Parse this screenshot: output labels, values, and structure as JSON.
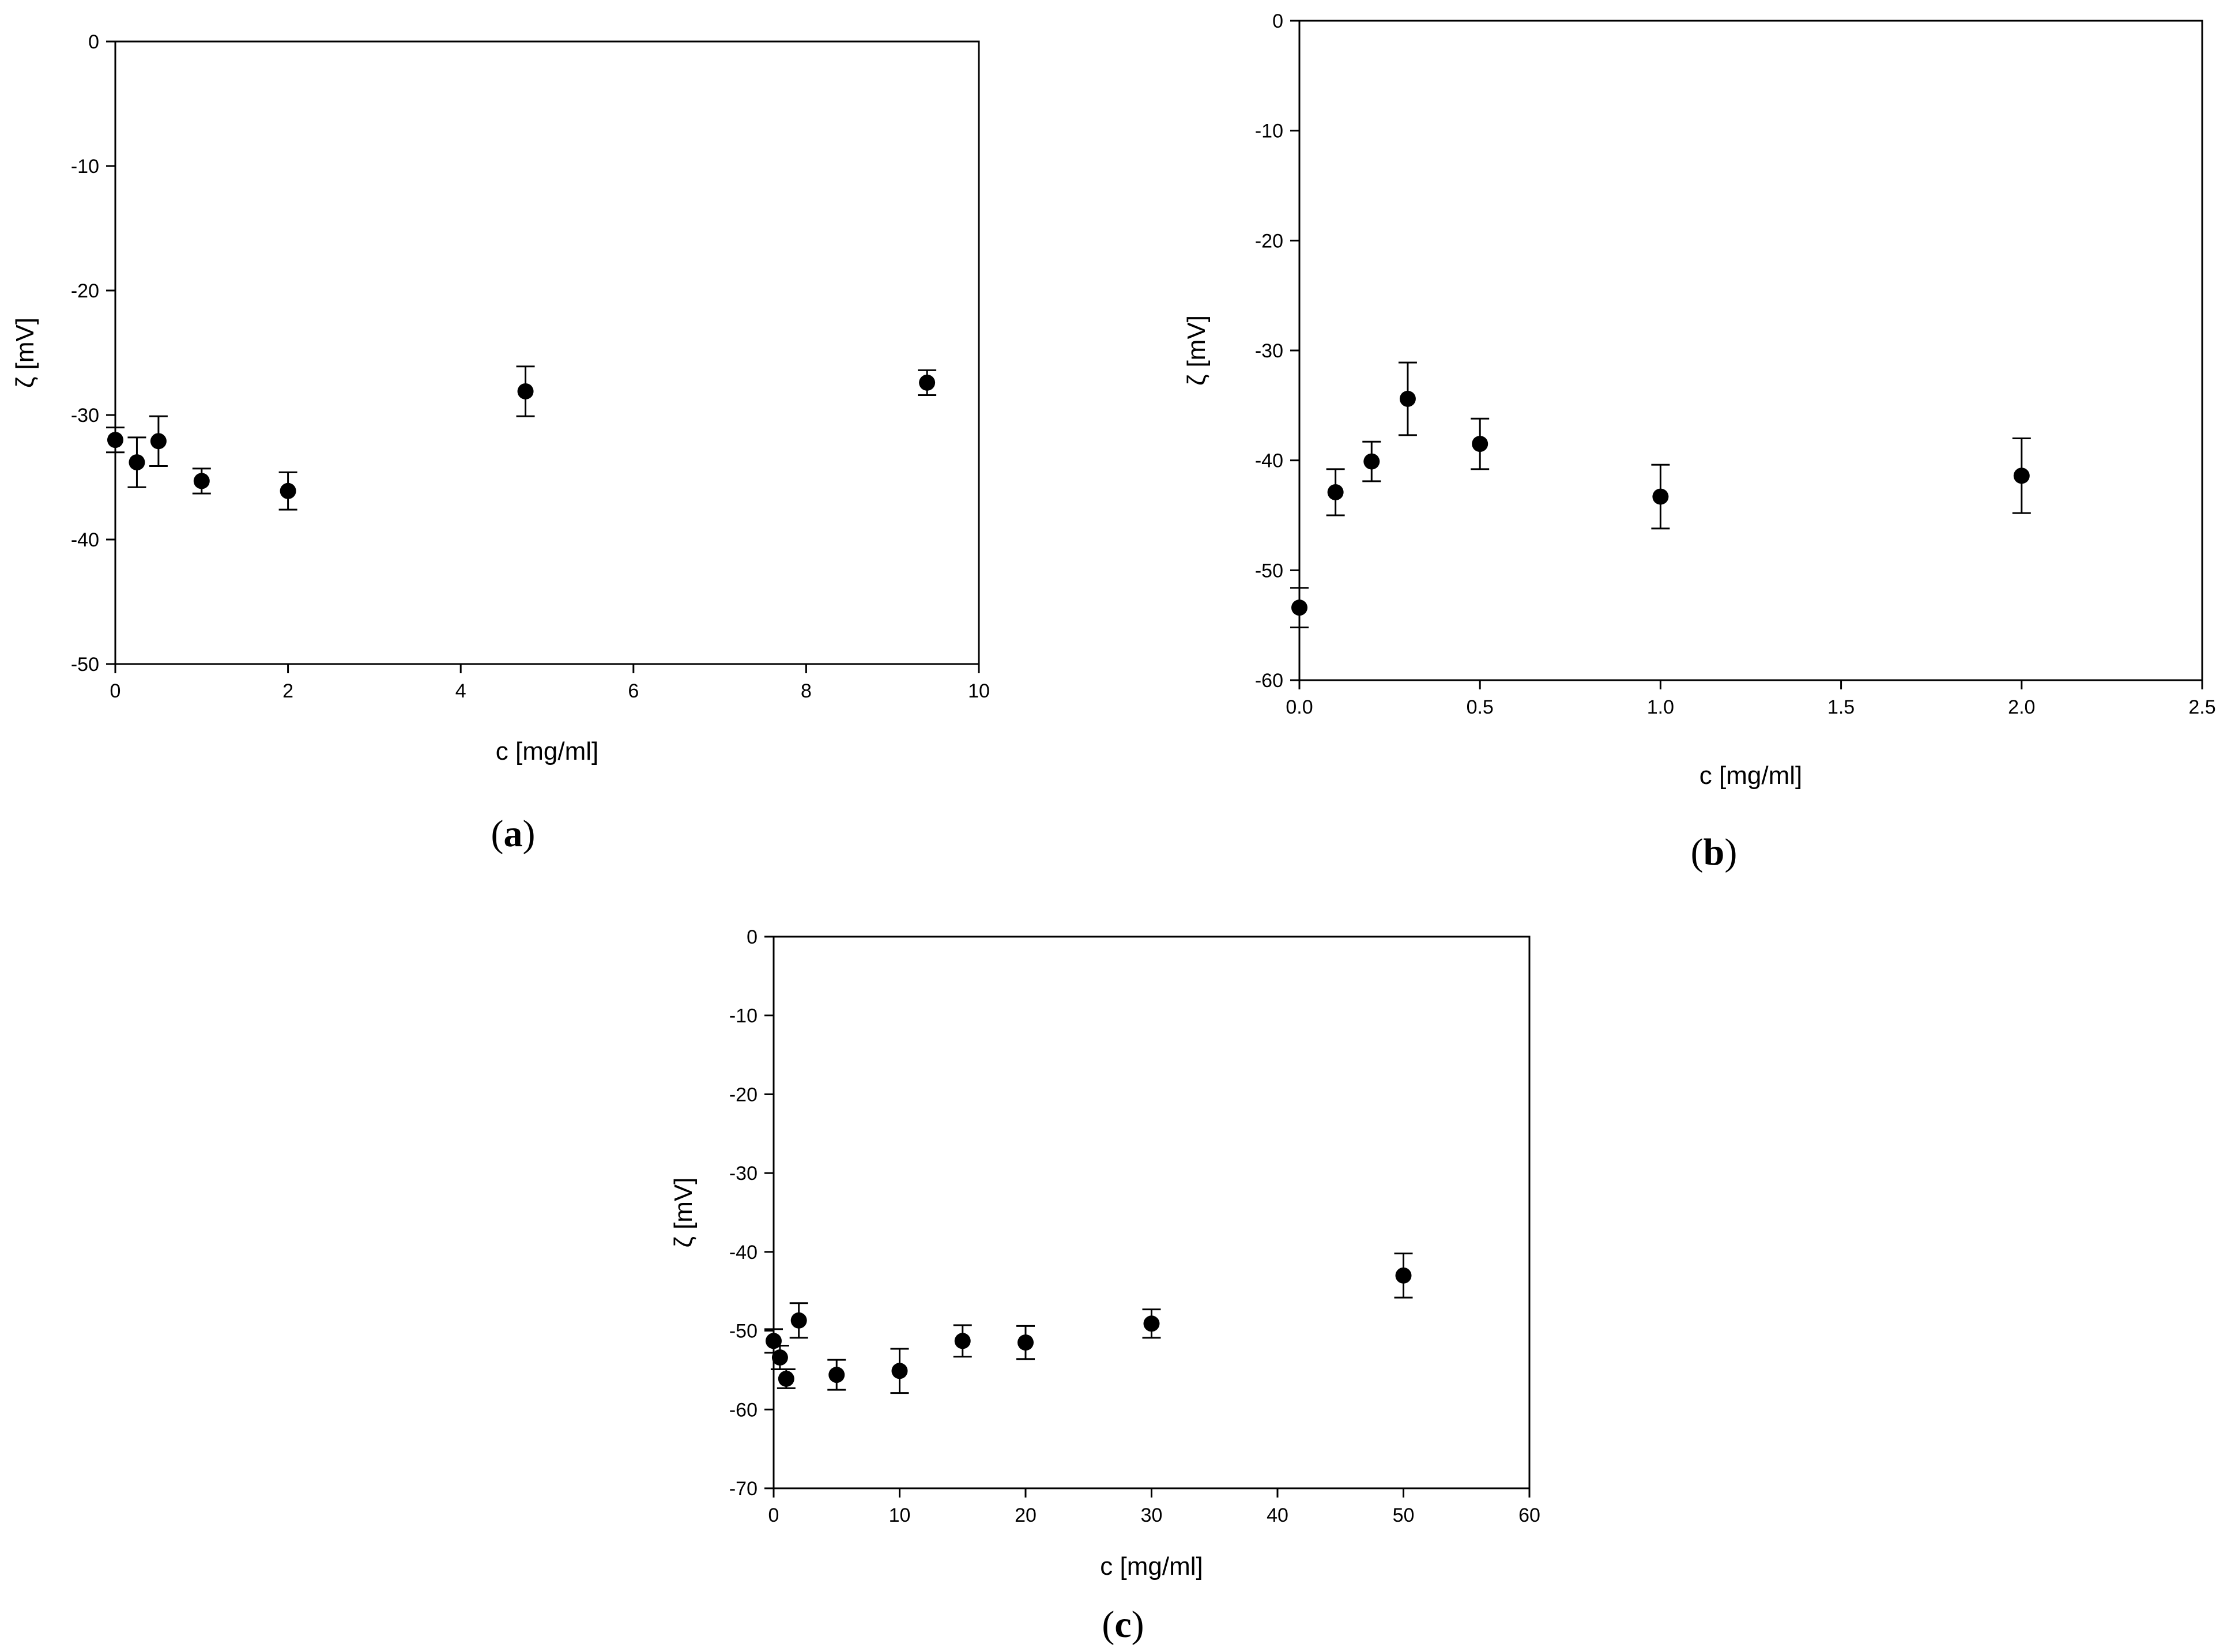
{
  "chart_data": [
    {
      "type": "scatter",
      "panel_label": "a",
      "xlabel": "c [mg/ml]",
      "ylabel": "ζ [mV]",
      "xlim": [
        0,
        10
      ],
      "ylim": [
        -50,
        0
      ],
      "xticks": [
        0,
        2,
        4,
        6,
        8,
        10
      ],
      "xtick_labels": [
        "0",
        "2",
        "4",
        "6",
        "8",
        "10"
      ],
      "yticks": [
        0,
        -10,
        -20,
        -30,
        -40,
        -50
      ],
      "ytick_labels": [
        "0",
        "-10",
        "-20",
        "-30",
        "-40",
        "-50"
      ],
      "grid": false,
      "points": [
        {
          "x": 0.0,
          "y": -32.0,
          "err": 1.0
        },
        {
          "x": 0.25,
          "y": -33.8,
          "err": 2.0
        },
        {
          "x": 0.5,
          "y": -32.1,
          "err": 2.0
        },
        {
          "x": 1.0,
          "y": -35.3,
          "err": 1.0
        },
        {
          "x": 2.0,
          "y": -36.1,
          "err": 1.5
        },
        {
          "x": 4.75,
          "y": -28.1,
          "err": 2.0
        },
        {
          "x": 9.4,
          "y": -27.4,
          "err": 1.0
        }
      ]
    },
    {
      "type": "scatter",
      "panel_label": "b",
      "xlabel": "c [mg/ml]",
      "ylabel": "ζ [mV]",
      "xlim": [
        0,
        2.5
      ],
      "ylim": [
        -60,
        0
      ],
      "xticks": [
        0,
        0.5,
        1.0,
        1.5,
        2.0,
        2.5
      ],
      "xtick_labels": [
        "0.0",
        "0.5",
        "1.0",
        "1.5",
        "2.0",
        "2.5"
      ],
      "yticks": [
        0,
        -10,
        -20,
        -30,
        -40,
        -50,
        -60
      ],
      "ytick_labels": [
        "0",
        "-10",
        "-20",
        "-30",
        "-40",
        "-50",
        "-60"
      ],
      "grid": false,
      "points": [
        {
          "x": 0.0,
          "y": -53.4,
          "err": 1.8
        },
        {
          "x": 0.1,
          "y": -42.9,
          "err": 2.1
        },
        {
          "x": 0.2,
          "y": -40.1,
          "err": 1.8
        },
        {
          "x": 0.3,
          "y": -34.4,
          "err": 3.3
        },
        {
          "x": 0.5,
          "y": -38.5,
          "err": 2.3
        },
        {
          "x": 1.0,
          "y": -43.3,
          "err": 2.9
        },
        {
          "x": 2.0,
          "y": -41.4,
          "err": 3.4
        }
      ]
    },
    {
      "type": "scatter",
      "panel_label": "c",
      "xlabel": "c [mg/ml]",
      "ylabel": "ζ [mV]",
      "xlim": [
        0,
        60
      ],
      "ylim": [
        -70,
        0
      ],
      "xticks": [
        0,
        10,
        20,
        30,
        40,
        50,
        60
      ],
      "xtick_labels": [
        "0",
        "10",
        "20",
        "30",
        "40",
        "50",
        "60"
      ],
      "yticks": [
        0,
        -10,
        -20,
        -30,
        -40,
        -50,
        -60,
        -70
      ],
      "ytick_labels": [
        "0",
        "-10",
        "-20",
        "-30",
        "-40",
        "-50",
        "-60",
        "-70"
      ],
      "grid": false,
      "points": [
        {
          "x": 0.0,
          "y": -51.3,
          "err": 1.5
        },
        {
          "x": 0.5,
          "y": -53.4,
          "err": 1.5
        },
        {
          "x": 1.0,
          "y": -56.1,
          "err": 1.2
        },
        {
          "x": 2.0,
          "y": -48.7,
          "err": 2.2
        },
        {
          "x": 5.0,
          "y": -55.6,
          "err": 1.9
        },
        {
          "x": 10.0,
          "y": -55.1,
          "err": 2.8
        },
        {
          "x": 15.0,
          "y": -51.3,
          "err": 2.0
        },
        {
          "x": 20.0,
          "y": -51.5,
          "err": 2.1
        },
        {
          "x": 30.0,
          "y": -49.1,
          "err": 1.8
        },
        {
          "x": 50.0,
          "y": -43.0,
          "err": 2.8
        }
      ]
    }
  ]
}
